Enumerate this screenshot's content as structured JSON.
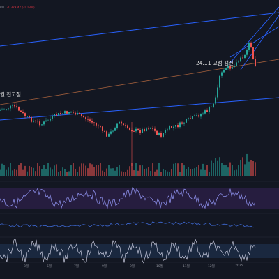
{
  "header": {
    "symbol_text": "BU..",
    "change_text": "-1,373.47 (-1.13%)"
  },
  "annotations": {
    "left_label": "월 전고점",
    "right_label": "24.11 고점 갱신"
  },
  "x_axis": {
    "ticks": [
      "3월",
      "5월",
      "7월",
      "9월",
      "9월",
      "10월",
      "11월",
      "12월",
      "2025"
    ]
  },
  "colors": {
    "background": "#131722",
    "up": "#26a69a",
    "down": "#ef5350",
    "trendline_blue": "#2962ff",
    "trendline_orange": "#a35f3c",
    "rsi_line": "#8b8ee8",
    "rsi_band": "#2a1f44",
    "macd_line": "#3f6bd8",
    "stoch_line": "#c9cce0",
    "stoch_band": "#1c2a42",
    "volume_bar": "#7a8a9a"
  }
}
